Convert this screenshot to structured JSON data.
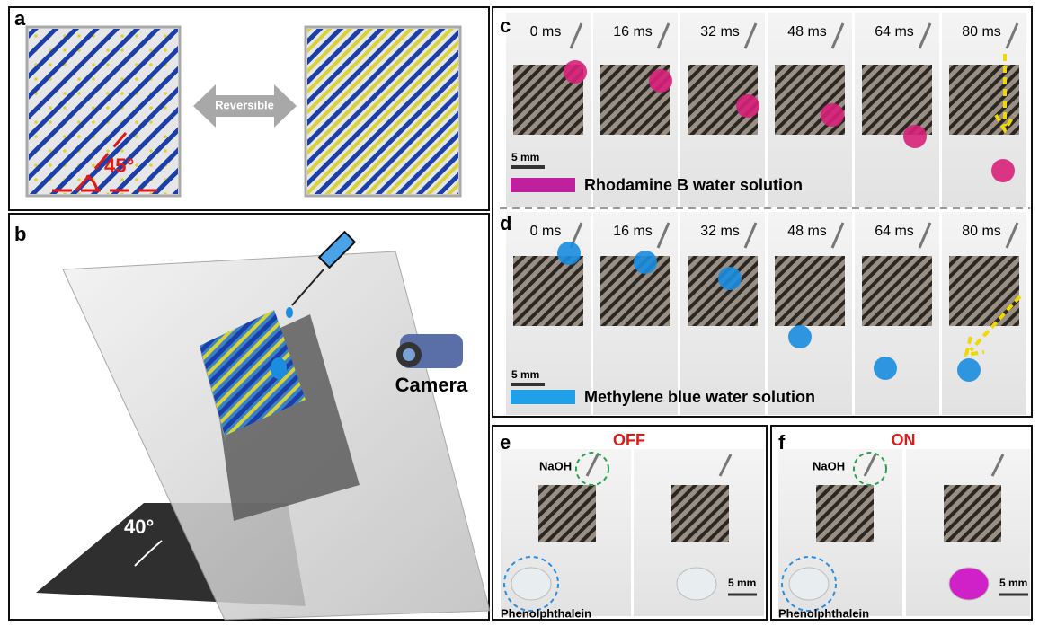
{
  "panels": {
    "a": {
      "label": "a",
      "angle": "45°",
      "arrow": "Reversible"
    },
    "b": {
      "label": "b",
      "camera": "Camera",
      "angle": "40°"
    },
    "c": {
      "label": "c",
      "times": [
        "0 ms",
        "16 ms",
        "32 ms",
        "48 ms",
        "64 ms",
        "80 ms"
      ],
      "scale_bar": "5 mm",
      "legend": "Rhodamine B water solution"
    },
    "d": {
      "label": "d",
      "times": [
        "0 ms",
        "16 ms",
        "32 ms",
        "48 ms",
        "64 ms",
        "80 ms"
      ],
      "scale_bar": "5 mm",
      "legend": "Methylene blue water solution"
    },
    "e": {
      "label": "e",
      "state": "OFF",
      "reagent": "NaOH",
      "indicator": "Phenolphthalein",
      "scale_bar": "5 mm"
    },
    "f": {
      "label": "f",
      "state": "ON",
      "reagent": "NaOH",
      "indicator": "Phenolphthalein",
      "scale_bar": "5 mm"
    }
  }
}
